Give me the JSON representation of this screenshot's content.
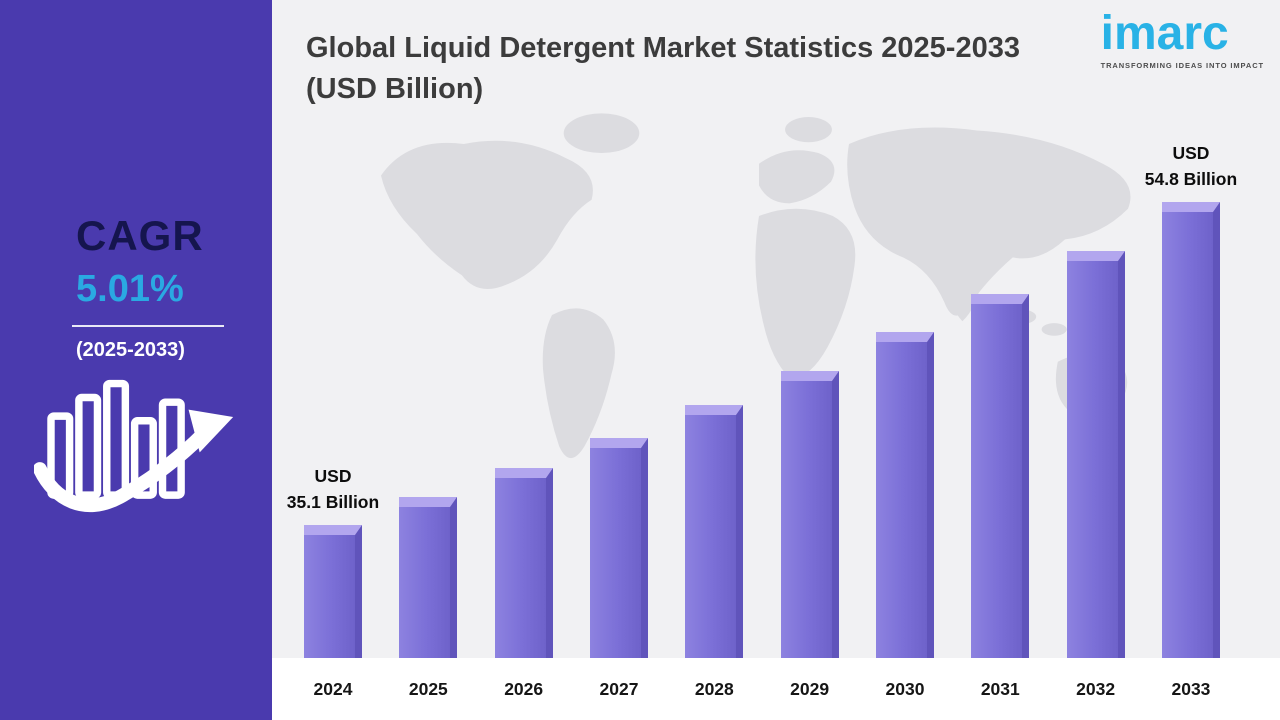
{
  "header": {
    "title": "Global Liquid Detergent Market Statistics 2025-2033 (USD Billion)"
  },
  "logo": {
    "wordmark": "imarc",
    "tagline": "TRANSFORMING IDEAS INTO IMPACT"
  },
  "sidebar": {
    "cagr_label": "CAGR",
    "cagr_value": "5.01%",
    "cagr_period": "(2025-2033)",
    "icon": "growth-chart-icon"
  },
  "colors": {
    "sidebar_purple": "#4a3aae",
    "accent_cyan": "#29a9e2",
    "cagr_navy": "#15154e",
    "bar_face": "#7b6fd7",
    "bar_top": "#b2a6ee",
    "bar_side": "#6054bb",
    "background": "#f1f1f3",
    "map_gray": "#dcdce0",
    "title_gray": "#3c3c3c"
  },
  "chart_data": {
    "type": "bar",
    "title": "Global Liquid Detergent Market Statistics 2025-2033 (USD Billion)",
    "unit": "USD Billion",
    "categories": [
      "2024",
      "2025",
      "2026",
      "2027",
      "2028",
      "2029",
      "2030",
      "2031",
      "2032",
      "2033"
    ],
    "values": [
      35.1,
      36.8,
      38.6,
      40.4,
      42.4,
      44.5,
      46.9,
      49.2,
      51.8,
      54.8
    ],
    "labeled_values": {
      "2024": "USD 35.1 Billion",
      "2033": "USD 54.8 Billion"
    },
    "annotations": [
      {
        "index": 0,
        "text": "USD\n35.1 Billion"
      },
      {
        "index": 9,
        "text": "USD\n54.8 Billion"
      }
    ],
    "note": "Only 2024 and 2033 values are labeled in the image; intermediate values estimated from bar heights (CAGR 5.01%).",
    "xlabel": "",
    "ylabel": "",
    "ylim": [
      27,
      56
    ],
    "baseline_value": 27,
    "grid": false,
    "legend": false
  }
}
